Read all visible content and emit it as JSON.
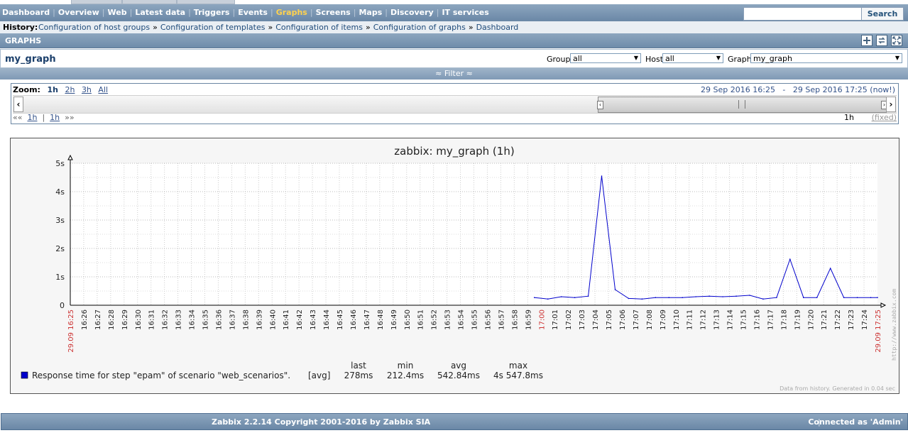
{
  "menu": {
    "items": [
      "Dashboard",
      "Overview",
      "Web",
      "Latest data",
      "Triggers",
      "Events",
      "Graphs",
      "Screens",
      "Maps",
      "Discovery",
      "IT services"
    ],
    "active": "Graphs",
    "search_button": "Search",
    "search_value": ""
  },
  "history": {
    "label": "History:",
    "crumbs": [
      "Configuration of host groups",
      "Configuration of templates",
      "Configuration of items",
      "Configuration of graphs",
      "Dashboard"
    ],
    "separator": "»"
  },
  "section": {
    "title": "GRAPHS"
  },
  "graph_bar": {
    "name": "my_graph",
    "group_label": "Group",
    "group_value": "all",
    "host_label": "Host",
    "host_value": "all",
    "graph_label": "Graph",
    "graph_value": "my_graph"
  },
  "filter": {
    "label": "Filter",
    "state_icon": "double-chevron-up-icon"
  },
  "zoom": {
    "label": "Zoom:",
    "current": "1h",
    "options": [
      "2h",
      "3h",
      "All"
    ],
    "period_text": "29 Sep 2016 16:25   -   29 Sep 2016 17:25 (now!)",
    "nav_prev": "««",
    "nav_back": "1h",
    "nav_sep": "|",
    "nav_fwd": "1h",
    "nav_next": "»»",
    "period_value": "1h",
    "fixed": "(fixed)",
    "slider_position": 1.0,
    "slider_size": 0.33
  },
  "graph": {
    "data_note": "Data from history. Generated in 0.04 sec",
    "watermark": "http://www.zabbix.com"
  },
  "chart_data": {
    "type": "line",
    "title": "zabbix: my_graph (1h)",
    "ylim": [
      0,
      5
    ],
    "yticks": [
      "0",
      "1s",
      "2s",
      "3s",
      "4s",
      "5s"
    ],
    "y_unit": "s",
    "x_start_label": "29.09 16:25",
    "x_end_label": "29.09 17:25",
    "x_labels": [
      "16:26",
      "16:27",
      "16:28",
      "16:29",
      "16:30",
      "16:31",
      "16:32",
      "16:33",
      "16:34",
      "16:35",
      "16:36",
      "16:37",
      "16:38",
      "16:39",
      "16:40",
      "16:41",
      "16:42",
      "16:43",
      "16:44",
      "16:45",
      "16:46",
      "16:47",
      "16:48",
      "16:49",
      "16:50",
      "16:51",
      "16:52",
      "16:53",
      "16:54",
      "16:55",
      "16:56",
      "16:57",
      "16:58",
      "16:59",
      "17:00",
      "17:01",
      "17:02",
      "17:03",
      "17:04",
      "17:05",
      "17:06",
      "17:07",
      "17:08",
      "17:09",
      "17:10",
      "17:11",
      "17:12",
      "17:13",
      "17:14",
      "17:15",
      "17:16",
      "17:17",
      "17:18",
      "17:19",
      "17:20",
      "17:21",
      "17:22",
      "17:23",
      "17:24"
    ],
    "highlight_labels": [
      "17:00"
    ],
    "grid": true,
    "series": [
      {
        "name": "Response time for step \"epam\" of scenario \"web_scenarios\".",
        "color": "#0000cc",
        "func": "[avg]",
        "x": [
          34.5,
          35.5,
          36.5,
          37.5,
          38.5,
          39.5,
          40.5,
          41.5,
          42.5,
          43.5,
          44.5,
          45.5,
          46.5,
          47.5,
          48.5,
          49.5,
          50.5,
          51.5,
          52.5,
          53.5,
          54.5,
          55.5,
          56.5,
          57.5,
          58.5,
          59.5,
          60.0
        ],
        "values": [
          0.27,
          0.22,
          0.3,
          0.27,
          0.32,
          4.55,
          0.55,
          0.24,
          0.22,
          0.27,
          0.27,
          0.27,
          0.3,
          0.32,
          0.3,
          0.32,
          0.35,
          0.22,
          0.27,
          1.62,
          0.27,
          0.27,
          1.3,
          0.27,
          0.27,
          0.27,
          0.27
        ]
      }
    ],
    "legend": {
      "headers": [
        "last",
        "min",
        "avg",
        "max"
      ],
      "values": [
        "278ms",
        "212.4ms",
        "542.84ms",
        "4s 547.8ms"
      ]
    }
  },
  "footer": {
    "copyright": "Zabbix 2.2.14 Copyright 2001-2016 by Zabbix SIA",
    "separator": "|",
    "connected": "Connected as 'Admin'"
  },
  "colors": {
    "accent": "#6a87a6",
    "active_menu": "#ffd24d",
    "link": "#1f4b7a",
    "series": "#0000cc",
    "highlight_label": "#cc3333"
  }
}
